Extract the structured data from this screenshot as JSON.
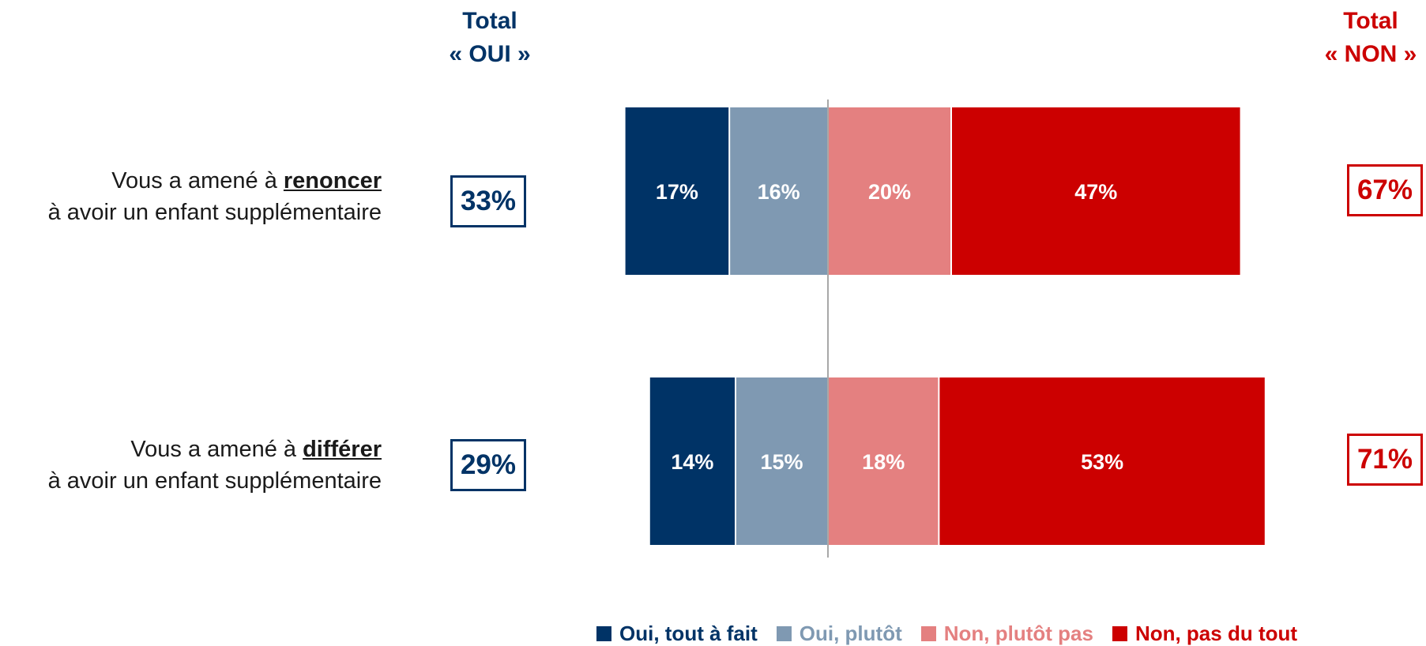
{
  "header": {
    "oui_title": "Total",
    "oui_subtitle": "« OUI »",
    "non_title": "Total",
    "non_subtitle": "« NON »"
  },
  "rows": [
    {
      "label_prefix": "Vous a amené à ",
      "label_verb": "renoncer",
      "label_suffix": "à avoir un enfant supplémentaire",
      "total_oui": "33%",
      "total_non": "67%"
    },
    {
      "label_prefix": "Vous a amené à ",
      "label_verb": "différer",
      "label_suffix": "à avoir un enfant supplémentaire",
      "total_oui": "29%",
      "total_non": "71%"
    }
  ],
  "legend": [
    {
      "label": "Oui, tout à fait",
      "color": "#003366"
    },
    {
      "label": "Oui, plutôt",
      "color": "#7f99b2"
    },
    {
      "label": "Non, plutôt pas",
      "color": "#e48080"
    },
    {
      "label": "Non, pas du tout",
      "color": "#cc0000"
    }
  ],
  "chart_data": {
    "type": "bar",
    "orientation": "horizontal",
    "stacked": "diverging",
    "categories": [
      "Vous a amené à renoncer à avoir un enfant supplémentaire",
      "Vous a amené à différer à avoir un enfant supplémentaire"
    ],
    "series": [
      {
        "name": "Oui, tout à fait",
        "values": [
          17,
          14
        ],
        "labels": [
          "17%",
          "14%"
        ],
        "color": "#003366",
        "side": "negative"
      },
      {
        "name": "Oui, plutôt",
        "values": [
          16,
          15
        ],
        "labels": [
          "16%",
          "15%"
        ],
        "color": "#7f99b2",
        "side": "negative"
      },
      {
        "name": "Non, plutôt pas",
        "values": [
          20,
          18
        ],
        "labels": [
          "20%",
          "18%"
        ],
        "color": "#e48080",
        "side": "positive"
      },
      {
        "name": "Non, pas du tout",
        "values": [
          47,
          53
        ],
        "labels": [
          "47%",
          "53%"
        ],
        "color": "#cc0000",
        "side": "positive"
      }
    ],
    "totals": {
      "oui": [
        "33%",
        "29%"
      ],
      "non": [
        "67%",
        "71%"
      ]
    },
    "legend_position": "bottom",
    "grid": false
  }
}
